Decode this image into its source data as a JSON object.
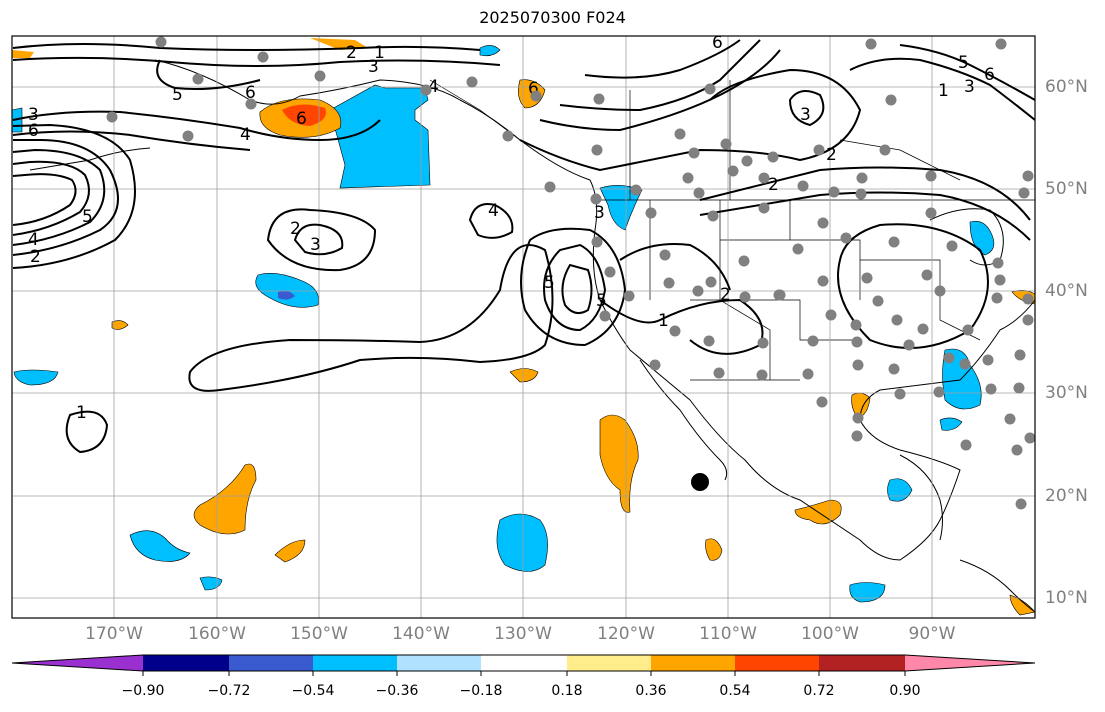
{
  "title": "2025070300 F024",
  "map": {
    "lon_labels": [
      "170°W",
      "160°W",
      "150°W",
      "140°W",
      "130°W",
      "120°W",
      "110°W",
      "100°W",
      "90°W"
    ],
    "lat_labels": [
      "60°N",
      "50°N",
      "40°N",
      "30°N",
      "20°N",
      "10°N"
    ],
    "contour_labels": [
      "1",
      "2",
      "3",
      "4",
      "5",
      "6"
    ]
  },
  "colorbar": {
    "colors": [
      "#9b30d0",
      "#00008b",
      "#3a5bcf",
      "#00bfff",
      "#b0e2ff",
      "#ffffff",
      "#ffec8b",
      "#ffa500",
      "#ff4500",
      "#b22222",
      "#ff88aa"
    ],
    "tick_labels": [
      "−0.90",
      "−0.72",
      "−0.54",
      "−0.36",
      "−0.18",
      "0.18",
      "0.36",
      "0.54",
      "0.72",
      "0.90"
    ]
  },
  "colors": {
    "station": "#808080",
    "contour": "#000000",
    "coast": "#000000",
    "grid": "#a0a0a0"
  }
}
